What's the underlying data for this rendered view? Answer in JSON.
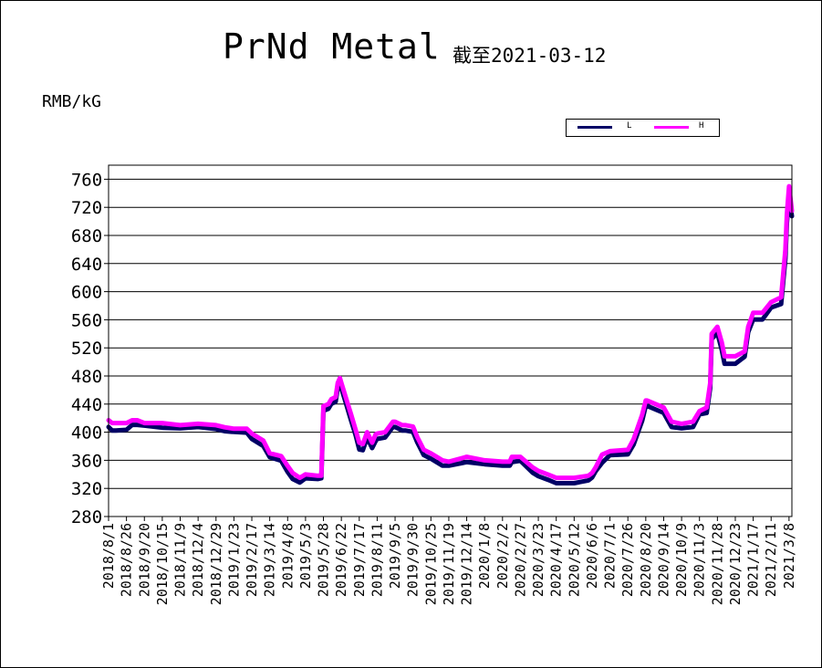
{
  "chart": {
    "title": "PrNd Metal",
    "subtitle": "截至2021-03-12",
    "unit": "RMB/kG"
  },
  "colors": {
    "L": "#000066",
    "H": "#ff00ff"
  },
  "chart_data": {
    "type": "line",
    "title": "PrNd Metal",
    "subtitle": "截至2021-03-12",
    "ylabel": "RMB/kG",
    "ylim": [
      280,
      780
    ],
    "yticks": [
      280,
      320,
      360,
      400,
      440,
      480,
      520,
      560,
      600,
      640,
      680,
      720,
      760
    ],
    "grid": true,
    "legend_position": "top-right",
    "x_tick_labels": [
      "2018/8/1",
      "2018/8/26",
      "2018/9/20",
      "2018/10/15",
      "2018/11/9",
      "2018/12/4",
      "2018/12/29",
      "2019/1/23",
      "2019/2/17",
      "2019/3/14",
      "2019/4/8",
      "2019/5/3",
      "2019/5/28",
      "2019/6/22",
      "2019/7/17",
      "2019/8/11",
      "2019/9/5",
      "2019/9/30",
      "2019/10/25",
      "2019/11/19",
      "2019/12/14",
      "2020/1/8",
      "2020/2/2",
      "2020/2/27",
      "2020/3/23",
      "2020/4/17",
      "2020/5/12",
      "2020/6/6",
      "2020/7/1",
      "2020/7/26",
      "2020/8/20",
      "2020/9/14",
      "2020/10/9",
      "2020/11/3",
      "2020/11/28",
      "2020/12/23",
      "2021/1/17",
      "2021/2/11",
      "2021/3/8"
    ],
    "x": [
      "2018/8/1",
      "2018/8/6",
      "2018/8/11",
      "2018/8/26",
      "2018/9/3",
      "2018/9/10",
      "2018/9/20",
      "2018/10/15",
      "2018/11/9",
      "2018/12/4",
      "2018/12/29",
      "2019/1/10",
      "2019/1/23",
      "2019/2/10",
      "2019/2/17",
      "2019/3/5",
      "2019/3/14",
      "2019/3/30",
      "2019/4/8",
      "2019/4/15",
      "2019/4/25",
      "2019/5/3",
      "2019/5/20",
      "2019/5/25",
      "2019/5/28",
      "2019/6/4",
      "2019/6/8",
      "2019/6/14",
      "2019/6/17",
      "2019/6/20",
      "2019/6/22",
      "2019/6/28",
      "2019/7/5",
      "2019/7/12",
      "2019/7/17",
      "2019/7/22",
      "2019/7/28",
      "2019/8/4",
      "2019/8/9",
      "2019/8/11",
      "2019/8/22",
      "2019/9/2",
      "2019/9/5",
      "2019/9/15",
      "2019/9/20",
      "2019/9/30",
      "2019/10/6",
      "2019/10/15",
      "2019/10/25",
      "2019/11/10",
      "2019/11/19",
      "2019/12/14",
      "2020/1/8",
      "2020/2/2",
      "2020/2/12",
      "2020/2/15",
      "2020/2/27",
      "2020/3/15",
      "2020/3/23",
      "2020/4/5",
      "2020/4/17",
      "2020/5/12",
      "2020/6/1",
      "2020/6/6",
      "2020/6/11",
      "2020/6/20",
      "2020/7/1",
      "2020/7/26",
      "2020/8/3",
      "2020/8/15",
      "2020/8/20",
      "2020/8/22",
      "2020/9/14",
      "2020/9/25",
      "2020/10/9",
      "2020/10/25",
      "2020/11/3",
      "2020/11/13",
      "2020/11/18",
      "2020/11/20",
      "2020/11/28",
      "2020/12/4",
      "2020/12/8",
      "2020/12/23",
      "2021/1/5",
      "2021/1/10",
      "2021/1/17",
      "2021/1/30",
      "2021/2/11",
      "2021/2/25",
      "2021/3/3",
      "2021/3/5",
      "2021/3/8",
      "2021/3/12"
    ],
    "series": [
      {
        "name": "L",
        "values": [
          410,
          405,
          405,
          406,
          413,
          413,
          412,
          409,
          408,
          410,
          407,
          404,
          403,
          402,
          393,
          383,
          367,
          362,
          346,
          336,
          331,
          337,
          336,
          337,
          433,
          436,
          443,
          446,
          466,
          472,
          465,
          445,
          421,
          398,
          378,
          377,
          395,
          380,
          390,
          393,
          395,
          410,
          410,
          405,
          405,
          403,
          388,
          370,
          365,
          355,
          355,
          360,
          357,
          355,
          355,
          360,
          362,
          345,
          340,
          335,
          330,
          330,
          334,
          338,
          347,
          359,
          370,
          371,
          385,
          419,
          440,
          440,
          430,
          410,
          408,
          410,
          428,
          430,
          466,
          535,
          544,
          520,
          500,
          500,
          510,
          545,
          563,
          563,
          580,
          585,
          650,
          700,
          740,
          710
        ]
      },
      {
        "name": "H",
        "values": [
          417,
          413,
          413,
          413,
          417,
          417,
          413,
          413,
          410,
          412,
          410,
          407,
          405,
          405,
          398,
          388,
          370,
          366,
          352,
          342,
          335,
          340,
          338,
          338,
          437,
          440,
          447,
          450,
          470,
          477,
          470,
          450,
          427,
          403,
          385,
          383,
          400,
          385,
          397,
          398,
          400,
          415,
          415,
          410,
          410,
          408,
          393,
          375,
          370,
          360,
          358,
          365,
          360,
          358,
          358,
          365,
          365,
          350,
          345,
          340,
          335,
          335,
          338,
          342,
          350,
          368,
          373,
          375,
          390,
          425,
          445,
          445,
          435,
          415,
          412,
          415,
          430,
          435,
          470,
          540,
          550,
          528,
          508,
          508,
          515,
          550,
          570,
          570,
          585,
          592,
          660,
          710,
          750,
          715
        ]
      }
    ]
  }
}
